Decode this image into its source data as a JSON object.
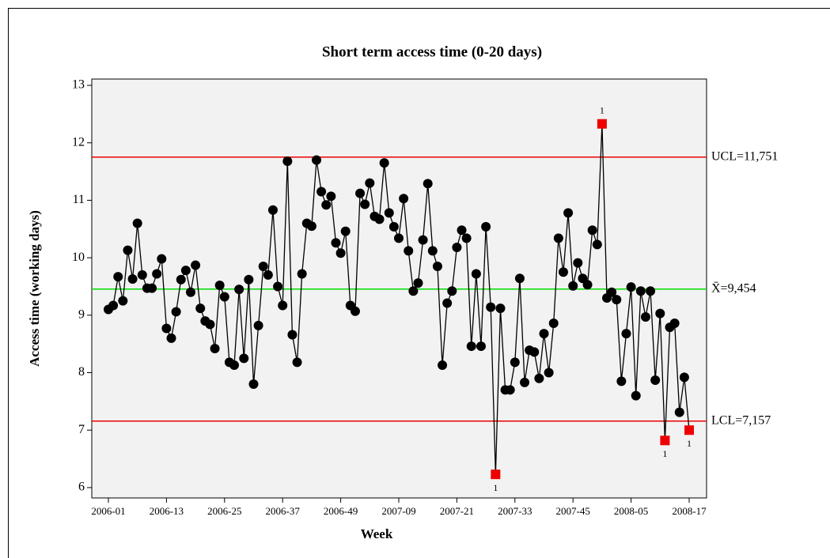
{
  "chart_data": {
    "type": "line",
    "title": "Short term access time (0-20 days)",
    "x_label": "Week",
    "y_label": "Access time (working days)",
    "categories": [
      "2006-01",
      null,
      null,
      null,
      null,
      null,
      null,
      null,
      null,
      null,
      null,
      null,
      "2006-13",
      null,
      null,
      null,
      null,
      null,
      null,
      null,
      null,
      null,
      null,
      null,
      "2006-25",
      null,
      null,
      null,
      null,
      null,
      null,
      null,
      null,
      null,
      null,
      null,
      "2006-37",
      null,
      null,
      null,
      null,
      null,
      null,
      null,
      null,
      null,
      null,
      null,
      "2006-49",
      null,
      null,
      null,
      null,
      null,
      null,
      null,
      null,
      null,
      null,
      null,
      "2007-09",
      null,
      null,
      null,
      null,
      null,
      null,
      null,
      null,
      null,
      null,
      null,
      "2007-21",
      null,
      null,
      null,
      null,
      null,
      null,
      null,
      null,
      null,
      null,
      null,
      "2007-33",
      null,
      null,
      null,
      null,
      null,
      null,
      null,
      null,
      null,
      null,
      null,
      "2007-45",
      null,
      null,
      null,
      null,
      null,
      null,
      null,
      null,
      null,
      null,
      null,
      "2008-05",
      null,
      null,
      null,
      null,
      null,
      null,
      null,
      null,
      null,
      null,
      null,
      "2008-17"
    ],
    "series": [
      {
        "color": "#000000",
        "flag_color": "#ee0000",
        "values": [
          9.1,
          9.17,
          9.67,
          9.25,
          10.13,
          9.63,
          10.6,
          9.7,
          9.47,
          9.47,
          9.72,
          9.98,
          8.77,
          8.6,
          9.06,
          9.62,
          9.78,
          9.4,
          9.87,
          9.12,
          8.9,
          8.84,
          8.42,
          9.52,
          9.32,
          8.18,
          8.13,
          9.45,
          8.25,
          9.62,
          7.8,
          8.82,
          9.85,
          9.7,
          10.83,
          9.5,
          9.17,
          11.68,
          8.66,
          8.18,
          9.72,
          10.6,
          10.55,
          11.7,
          11.15,
          10.92,
          11.07,
          10.26,
          10.08,
          10.46,
          9.17,
          9.07,
          11.12,
          10.93,
          11.3,
          10.72,
          10.67,
          11.65,
          10.78,
          10.54,
          10.34,
          11.03,
          10.12,
          9.42,
          9.56,
          10.31,
          11.29,
          10.12,
          9.85,
          8.13,
          9.21,
          9.42,
          10.18,
          10.48,
          10.34,
          8.46,
          9.72,
          8.46,
          10.54,
          9.14,
          6.23,
          9.12,
          7.7,
          7.7,
          8.18,
          9.64,
          7.83,
          8.39,
          8.36,
          7.9,
          8.68,
          8.0,
          8.86,
          10.34,
          9.75,
          10.78,
          9.51,
          9.91,
          9.64,
          9.53,
          10.48,
          10.23,
          12.33,
          9.3,
          9.4,
          9.27,
          7.85,
          8.68,
          9.49,
          7.6,
          9.42,
          8.97,
          9.42,
          7.87,
          9.03,
          6.82,
          8.79,
          8.86,
          7.31,
          7.92,
          7.0
        ],
        "flag_labels": [
          null,
          null,
          null,
          null,
          null,
          null,
          null,
          null,
          null,
          null,
          null,
          null,
          null,
          null,
          null,
          null,
          null,
          null,
          null,
          null,
          null,
          null,
          null,
          null,
          null,
          null,
          null,
          null,
          null,
          null,
          null,
          null,
          null,
          null,
          null,
          null,
          null,
          null,
          null,
          null,
          null,
          null,
          null,
          null,
          null,
          null,
          null,
          null,
          null,
          null,
          null,
          null,
          null,
          null,
          null,
          null,
          null,
          null,
          null,
          null,
          null,
          null,
          null,
          null,
          null,
          null,
          null,
          null,
          null,
          null,
          null,
          null,
          null,
          null,
          null,
          null,
          null,
          null,
          null,
          null,
          "1",
          null,
          null,
          null,
          null,
          null,
          null,
          null,
          null,
          null,
          null,
          null,
          null,
          null,
          null,
          null,
          null,
          null,
          null,
          null,
          null,
          null,
          "1",
          null,
          null,
          null,
          null,
          null,
          null,
          null,
          null,
          null,
          null,
          null,
          null,
          "1",
          null,
          null,
          null,
          null,
          "1"
        ]
      }
    ],
    "control_limits": [
      {
        "value": 11.751,
        "label": "UCL=11,751",
        "color": "#ee0000"
      },
      {
        "value": 9.454,
        "label": "X̄=9,454",
        "color": "#00dd00"
      },
      {
        "value": 7.157,
        "label": "LCL=7,157",
        "color": "#ee0000"
      }
    ],
    "ylim": [
      5.82,
      13.11
    ],
    "yticks": [
      6,
      7,
      8,
      9,
      10,
      11,
      12,
      13
    ],
    "plot_background": "#f2f2f2"
  }
}
